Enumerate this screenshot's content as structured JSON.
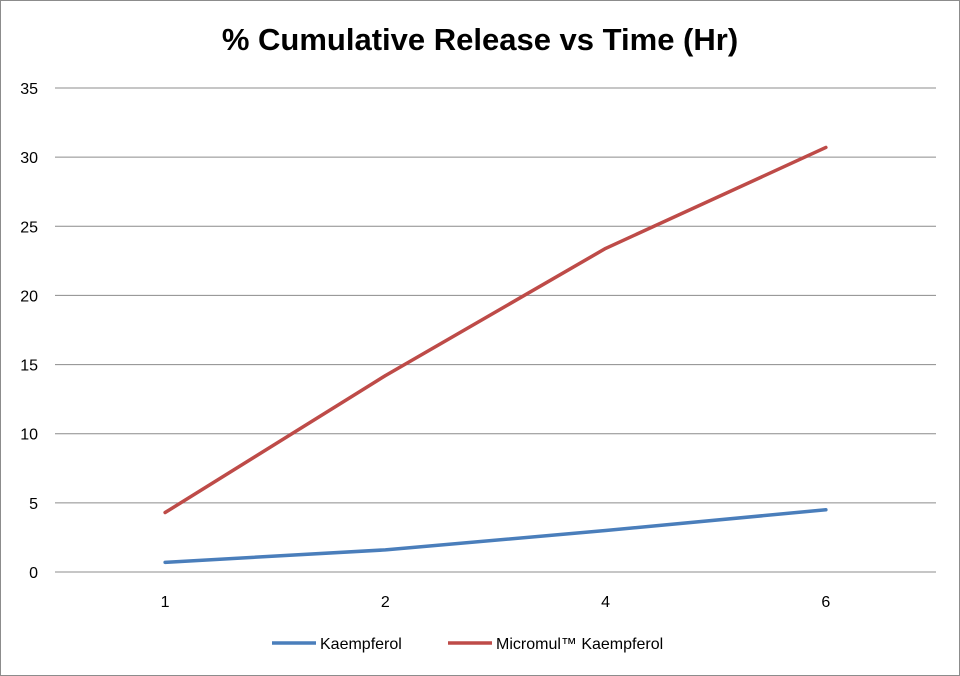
{
  "chart_data": {
    "type": "line",
    "title": "% Cumulative Release vs Time (Hr)",
    "xlabel": "",
    "ylabel": "",
    "categories": [
      "1",
      "2",
      "4",
      "6"
    ],
    "ylim": [
      0,
      35
    ],
    "yticks": [
      0,
      5,
      10,
      15,
      20,
      25,
      30,
      35
    ],
    "grid": true,
    "legend_position": "bottom",
    "series": [
      {
        "name": "Kaempferol",
        "color": "#4a7ebb",
        "values": [
          0.7,
          1.6,
          3.0,
          4.5
        ]
      },
      {
        "name": "Micromul™ Kaempferol",
        "color": "#be4b48",
        "values": [
          4.3,
          14.2,
          23.4,
          30.7
        ]
      }
    ]
  }
}
